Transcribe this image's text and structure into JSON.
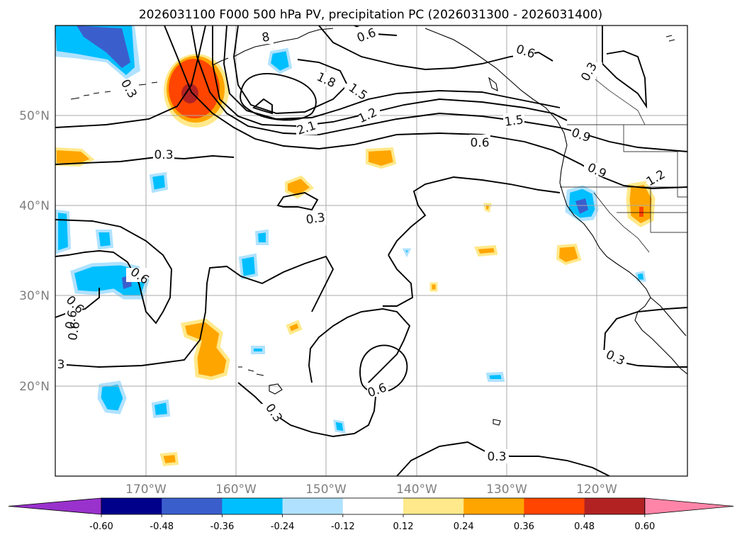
{
  "title": "2026031100 F000 500 hPa PV, precipitation PC (2026031300 - 2026031400)",
  "lat_labels": [
    "50°N",
    "40°N",
    "30°N",
    "20°N"
  ],
  "lon_labels": [
    "170°W",
    "160°W",
    "150°W",
    "140°W",
    "130°W",
    "120°W"
  ],
  "contour_labels": [
    "0.6",
    "0.6",
    "0.3",
    "1.8",
    "1.5",
    "1.2",
    "2.1",
    "1.5",
    "0.6",
    "0.9",
    "0.9",
    "1.2",
    "0.3",
    "0.3",
    "0.3",
    "0.6",
    "0.6",
    "0.6",
    "0.6",
    "3",
    "0.6",
    "0.3",
    "0.3",
    "0.3",
    "8"
  ],
  "colorbar": {
    "ticks": [
      "-0.60",
      "-0.48",
      "-0.36",
      "-0.24",
      "-0.12",
      "0.12",
      "0.24",
      "0.36",
      "0.48",
      "0.60"
    ],
    "colors": [
      "#9932cc",
      "#00008b",
      "#3a5fcd",
      "#00bfff",
      "#b0e2ff",
      "#ffffff",
      "#ffe98a",
      "#ffa500",
      "#ff4500",
      "#b22222",
      "#ff85a8"
    ]
  },
  "map": {
    "lon_range": [
      -180,
      -110
    ],
    "lat_range": [
      10,
      60
    ],
    "grid": true,
    "pv_contour_levels": [
      0.3,
      0.6,
      0.9,
      1.2,
      1.5,
      1.8,
      2.1
    ]
  }
}
